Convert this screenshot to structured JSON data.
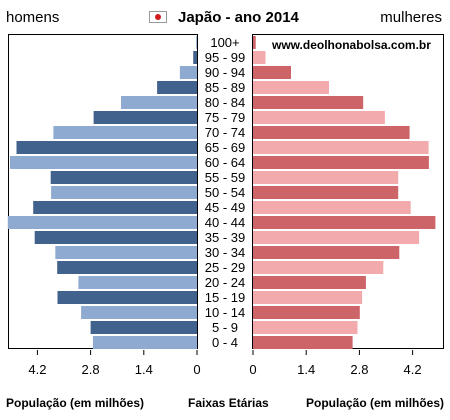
{
  "header": {
    "left_label": "homens",
    "title": "Japão - ano 2014",
    "right_label": "mulheres"
  },
  "footer": {
    "left_label": "População (em milhões)",
    "middle_label": "Faixas Etárias",
    "right_label": "População (em milhões)"
  },
  "watermark": "www.deolhonabolsa.com.br",
  "colors": {
    "male_dark": "#42628e",
    "male_light": "#8eaad0",
    "female_dark": "#cc6468",
    "female_light": "#f3aaac",
    "flag_dot": "#d21c1c"
  },
  "chart_data": {
    "type": "bar",
    "orientation": "horizontal-population-pyramid",
    "categories": [
      "100+",
      "95 - 99",
      "90 - 94",
      "85 - 89",
      "80 - 84",
      "75 - 79",
      "70 - 74",
      "65 - 69",
      "60 - 64",
      "55 - 59",
      "50 - 54",
      "45 - 49",
      "40 - 44",
      "35 - 39",
      "30 - 34",
      "25 - 29",
      "20 - 24",
      "15 - 19",
      "10 - 14",
      "5 - 9",
      "0 - 4"
    ],
    "series": [
      {
        "name": "homens",
        "values": [
          0.02,
          0.1,
          0.45,
          1.05,
          2.0,
          2.72,
          3.78,
          4.75,
          4.92,
          3.85,
          3.84,
          4.31,
          4.98,
          4.27,
          3.73,
          3.68,
          3.12,
          3.67,
          3.05,
          2.8,
          2.74
        ]
      },
      {
        "name": "mulheres",
        "values": [
          0.07,
          0.33,
          1.0,
          2.0,
          2.9,
          3.47,
          4.12,
          4.62,
          4.63,
          3.82,
          3.82,
          4.15,
          4.8,
          4.37,
          3.85,
          3.43,
          2.97,
          2.87,
          2.81,
          2.75,
          2.62
        ]
      }
    ],
    "x_ticks_left": [
      "4.2",
      "2.8",
      "1.4",
      "0"
    ],
    "x_ticks_right": [
      "0",
      "1.4",
      "2.8",
      "4.2"
    ],
    "xlim": [
      0,
      5.0
    ]
  }
}
